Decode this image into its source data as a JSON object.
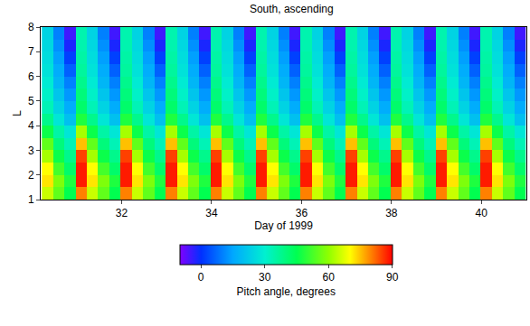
{
  "chart_data": {
    "type": "heatmap",
    "title": "South, ascending",
    "x_label": "Day of 1999",
    "y_label": "L",
    "x": [
      30.35,
      30.6,
      30.85,
      31.1,
      31.35,
      31.6,
      31.85,
      32.1,
      32.35,
      32.6,
      32.85,
      33.1,
      33.35,
      33.6,
      33.85,
      34.1,
      34.35,
      34.6,
      34.85,
      35.1,
      35.35,
      35.6,
      35.85,
      36.1,
      36.35,
      36.6,
      36.85,
      37.1,
      37.35,
      37.6,
      37.85,
      38.1,
      38.35,
      38.6,
      38.85,
      39.1,
      39.35,
      39.6,
      39.85,
      40.1,
      40.35,
      40.6,
      40.85
    ],
    "y": [
      1.25,
      1.75,
      2.25,
      2.75,
      3.25,
      3.75,
      4.25,
      4.75,
      5.25,
      5.75,
      6.25,
      6.75,
      7.25,
      7.75
    ],
    "z": [
      [
        65,
        55,
        45,
        80,
        65,
        55,
        45,
        80,
        65,
        55,
        45,
        80,
        65,
        55,
        45,
        80,
        65,
        55,
        45,
        80,
        65,
        55,
        45,
        80,
        65,
        55,
        45,
        80,
        65,
        55,
        45,
        80,
        65,
        55,
        45,
        80,
        65,
        55,
        45,
        80,
        65,
        55,
        45
      ],
      [
        72,
        58,
        48,
        88,
        72,
        58,
        48,
        88,
        72,
        58,
        48,
        88,
        72,
        58,
        48,
        88,
        72,
        58,
        48,
        88,
        72,
        58,
        48,
        88,
        72,
        58,
        48,
        88,
        72,
        58,
        48,
        88,
        72,
        58,
        48,
        88,
        72,
        58,
        48,
        88,
        72,
        58,
        48
      ],
      [
        70,
        52,
        42,
        88,
        70,
        52,
        42,
        88,
        70,
        52,
        42,
        88,
        70,
        52,
        42,
        88,
        70,
        52,
        42,
        88,
        70,
        52,
        42,
        88,
        70,
        52,
        42,
        88,
        70,
        52,
        42,
        88,
        70,
        52,
        42,
        88,
        70,
        52,
        42,
        88,
        70,
        52,
        42
      ],
      [
        62,
        46,
        38,
        85,
        62,
        46,
        38,
        85,
        62,
        46,
        38,
        85,
        62,
        46,
        38,
        85,
        62,
        46,
        38,
        85,
        62,
        46,
        38,
        85,
        62,
        46,
        38,
        85,
        62,
        46,
        38,
        85,
        62,
        46,
        38,
        85,
        62,
        46,
        38,
        85,
        62,
        46,
        38
      ],
      [
        55,
        40,
        33,
        75,
        55,
        40,
        33,
        75,
        55,
        40,
        33,
        75,
        55,
        40,
        33,
        75,
        55,
        40,
        33,
        75,
        55,
        40,
        33,
        75,
        55,
        40,
        33,
        75,
        55,
        40,
        33,
        75,
        55,
        40,
        33,
        75,
        55,
        40,
        33,
        75,
        55,
        40,
        33
      ],
      [
        46,
        35,
        28,
        62,
        46,
        35,
        28,
        62,
        46,
        35,
        28,
        62,
        46,
        35,
        28,
        62,
        46,
        35,
        28,
        62,
        46,
        35,
        28,
        62,
        46,
        35,
        28,
        62,
        46,
        35,
        28,
        62,
        46,
        35,
        28,
        62,
        46,
        35,
        28,
        62,
        46,
        35,
        28
      ],
      [
        38,
        28,
        20,
        48,
        38,
        28,
        20,
        48,
        38,
        28,
        20,
        48,
        38,
        28,
        20,
        48,
        38,
        28,
        20,
        48,
        38,
        28,
        20,
        48,
        38,
        28,
        20,
        48,
        38,
        28,
        20,
        48,
        38,
        28,
        20,
        48,
        38,
        28,
        20,
        48,
        38,
        28,
        20
      ],
      [
        33,
        24,
        16,
        42,
        33,
        24,
        16,
        42,
        33,
        24,
        16,
        42,
        33,
        24,
        16,
        42,
        33,
        24,
        16,
        42,
        33,
        24,
        16,
        42,
        33,
        24,
        16,
        42,
        33,
        24,
        16,
        42,
        33,
        24,
        16,
        42,
        33,
        24,
        16,
        42,
        33,
        24,
        16
      ],
      [
        31,
        21,
        13,
        40,
        31,
        21,
        13,
        40,
        31,
        21,
        13,
        40,
        31,
        21,
        13,
        40,
        31,
        21,
        13,
        40,
        31,
        21,
        13,
        40,
        31,
        21,
        13,
        40,
        31,
        21,
        13,
        40,
        31,
        21,
        13,
        40,
        31,
        21,
        13,
        40,
        31,
        21,
        13
      ],
      [
        29,
        18,
        10,
        38,
        29,
        18,
        10,
        38,
        29,
        18,
        10,
        38,
        29,
        18,
        10,
        38,
        29,
        18,
        10,
        38,
        29,
        18,
        10,
        38,
        29,
        18,
        10,
        38,
        29,
        18,
        10,
        38,
        29,
        18,
        10,
        38,
        29,
        18,
        10,
        38,
        29,
        18,
        10
      ],
      [
        27,
        16,
        6,
        36,
        27,
        16,
        6,
        36,
        27,
        16,
        6,
        36,
        27,
        16,
        6,
        36,
        27,
        16,
        6,
        36,
        27,
        16,
        6,
        36,
        27,
        16,
        6,
        36,
        27,
        16,
        6,
        36,
        27,
        16,
        6,
        36,
        27,
        16,
        6,
        36,
        27,
        16,
        6
      ],
      [
        26,
        14,
        2,
        35,
        26,
        14,
        2,
        35,
        26,
        14,
        2,
        35,
        26,
        14,
        2,
        35,
        26,
        14,
        2,
        35,
        26,
        14,
        2,
        35,
        26,
        14,
        2,
        35,
        26,
        14,
        2,
        35,
        26,
        14,
        2,
        35,
        26,
        14,
        2,
        35,
        26,
        14,
        2
      ],
      [
        25,
        12,
        -2,
        34,
        25,
        12,
        -2,
        34,
        25,
        12,
        -2,
        34,
        25,
        12,
        -2,
        34,
        25,
        12,
        -2,
        34,
        25,
        12,
        -2,
        34,
        25,
        12,
        -2,
        34,
        25,
        12,
        -2,
        34,
        25,
        12,
        -2,
        34,
        25,
        12,
        -2,
        34,
        25,
        12,
        -2
      ],
      [
        24,
        10,
        -5,
        34,
        24,
        10,
        -5,
        34,
        24,
        10,
        -5,
        34,
        24,
        10,
        -5,
        34,
        24,
        10,
        -5,
        34,
        24,
        10,
        -5,
        34,
        24,
        10,
        -5,
        34,
        24,
        10,
        -5,
        34,
        24,
        10,
        -5,
        34,
        24,
        10,
        -5,
        34,
        24,
        10,
        -5
      ]
    ],
    "xlim": [
      30.2,
      41.0
    ],
    "xticks": [
      32,
      34,
      36,
      38,
      40
    ],
    "ylim": [
      1,
      8
    ],
    "yticks": [
      1,
      2,
      3,
      4,
      5,
      6,
      7,
      8
    ],
    "colorbar_title": "Pitch angle, degrees",
    "colorbar_range": [
      -10,
      90
    ],
    "colorbar_ticks": [
      0,
      30,
      60,
      90
    ]
  }
}
